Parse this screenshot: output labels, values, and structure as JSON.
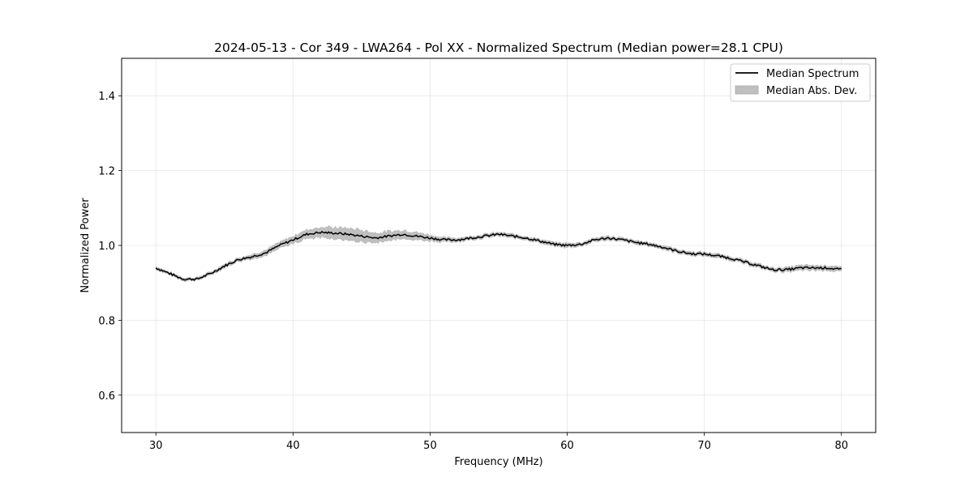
{
  "chart_data": {
    "type": "line",
    "title": "2024-05-13 - Cor 349 - LWA264 - Pol XX - Normalized Spectrum (Median power=28.1 CPU)",
    "xlabel": "Frequency (MHz)",
    "ylabel": "Normalized Power",
    "xlim": [
      27.5,
      82.5
    ],
    "ylim": [
      0.5,
      1.5
    ],
    "xticks": [
      30,
      40,
      50,
      60,
      70,
      80
    ],
    "yticks": [
      0.6,
      0.8,
      1.0,
      1.2,
      1.4
    ],
    "xtick_labels": [
      "30",
      "40",
      "50",
      "60",
      "70",
      "80"
    ],
    "ytick_labels": [
      "0.6",
      "0.8",
      "1.0",
      "1.2",
      "1.4"
    ],
    "grid": true,
    "legend_position": "top-right",
    "series": [
      {
        "name": "Median Spectrum",
        "kind": "line",
        "color": "#000000",
        "x": [
          30,
          31,
          32,
          33,
          34,
          35,
          36,
          37,
          38,
          39,
          40,
          41,
          42,
          43,
          44,
          45,
          46,
          47,
          48,
          49,
          50,
          51,
          52,
          53,
          54,
          55,
          56,
          57,
          58,
          59,
          60,
          61,
          62,
          63,
          64,
          65,
          66,
          67,
          68,
          69,
          70,
          71,
          72,
          73,
          74,
          75,
          76,
          77,
          78,
          79,
          80
        ],
        "y": [
          0.94,
          0.925,
          0.91,
          0.91,
          0.925,
          0.945,
          0.962,
          0.97,
          0.98,
          1.0,
          1.015,
          1.03,
          1.035,
          1.033,
          1.03,
          1.025,
          1.02,
          1.025,
          1.03,
          1.025,
          1.02,
          1.015,
          1.015,
          1.02,
          1.025,
          1.03,
          1.025,
          1.02,
          1.012,
          1.003,
          1.0,
          1.003,
          1.015,
          1.02,
          1.015,
          1.008,
          1.003,
          0.995,
          0.985,
          0.978,
          0.977,
          0.972,
          0.965,
          0.955,
          0.945,
          0.935,
          0.935,
          0.94,
          0.94,
          0.94,
          0.935
        ]
      },
      {
        "name": "Median Abs. Dev.",
        "kind": "band",
        "color": "#bfbfbf",
        "x": [
          30,
          31,
          32,
          33,
          34,
          35,
          36,
          37,
          38,
          39,
          40,
          41,
          42,
          43,
          44,
          45,
          46,
          47,
          48,
          49,
          50,
          51,
          52,
          53,
          54,
          55,
          56,
          57,
          58,
          59,
          60,
          61,
          62,
          63,
          64,
          65,
          66,
          67,
          68,
          69,
          70,
          71,
          72,
          73,
          74,
          75,
          76,
          77,
          78,
          79,
          80
        ],
        "halfwidth": [
          0.004,
          0.004,
          0.004,
          0.004,
          0.004,
          0.005,
          0.005,
          0.006,
          0.007,
          0.008,
          0.01,
          0.012,
          0.014,
          0.015,
          0.016,
          0.016,
          0.014,
          0.012,
          0.011,
          0.01,
          0.008,
          0.006,
          0.005,
          0.005,
          0.005,
          0.005,
          0.005,
          0.005,
          0.005,
          0.005,
          0.006,
          0.005,
          0.005,
          0.005,
          0.005,
          0.005,
          0.005,
          0.005,
          0.005,
          0.005,
          0.005,
          0.005,
          0.005,
          0.005,
          0.005,
          0.005,
          0.006,
          0.007,
          0.007,
          0.007,
          0.006
        ]
      }
    ]
  }
}
